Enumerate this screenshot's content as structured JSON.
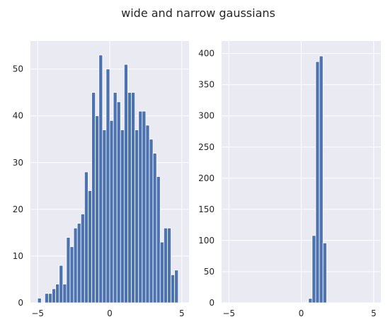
{
  "suptitle": "wide and narrow gaussians",
  "colors": {
    "bar": "#4c72b0",
    "panel_background": "#eaeaf2",
    "grid": "#ffffff",
    "text": "#262626"
  },
  "chart_data": [
    {
      "type": "bar",
      "subtype": "histogram",
      "title": "",
      "xlabel": "",
      "ylabel": "",
      "xlim": [
        -5.5,
        5.5
      ],
      "ylim": [
        0,
        56
      ],
      "xticks": [
        -5,
        0,
        5
      ],
      "yticks": [
        0,
        10,
        20,
        30,
        40,
        50
      ],
      "grid": true,
      "bin_width": 0.25,
      "bin_starts": [
        -5.0,
        -4.75,
        -4.5,
        -4.25,
        -4.0,
        -3.75,
        -3.5,
        -3.25,
        -3.0,
        -2.75,
        -2.5,
        -2.25,
        -2.0,
        -1.75,
        -1.5,
        -1.25,
        -1.0,
        -0.75,
        -0.5,
        -0.25,
        0.0,
        0.25,
        0.5,
        0.75,
        1.0,
        1.25,
        1.5,
        1.75,
        2.0,
        2.25,
        2.5,
        2.75,
        3.0,
        3.25,
        3.5,
        3.75,
        4.0,
        4.25,
        4.5,
        4.75
      ],
      "values": [
        1,
        0,
        2,
        2,
        3,
        4,
        8,
        4,
        14,
        12,
        16,
        17,
        19,
        28,
        24,
        45,
        40,
        53,
        37,
        50,
        39,
        45,
        43,
        37,
        51,
        45,
        45,
        37,
        41,
        41,
        38,
        35,
        32,
        27,
        13,
        16,
        16,
        6,
        7,
        0
      ]
    },
    {
      "type": "bar",
      "subtype": "histogram",
      "title": "",
      "xlabel": "",
      "ylabel": "",
      "xlim": [
        -5.5,
        5.5
      ],
      "ylim": [
        0,
        420
      ],
      "xticks": [
        -5,
        0,
        5
      ],
      "yticks": [
        0,
        50,
        100,
        150,
        200,
        250,
        300,
        350,
        400
      ],
      "grid": true,
      "bin_width": 0.25,
      "bin_starts": [
        0.25,
        0.5,
        0.75,
        1.0,
        1.25,
        1.5
      ],
      "values": [
        1,
        7,
        108,
        387,
        396,
        96
      ]
    }
  ]
}
